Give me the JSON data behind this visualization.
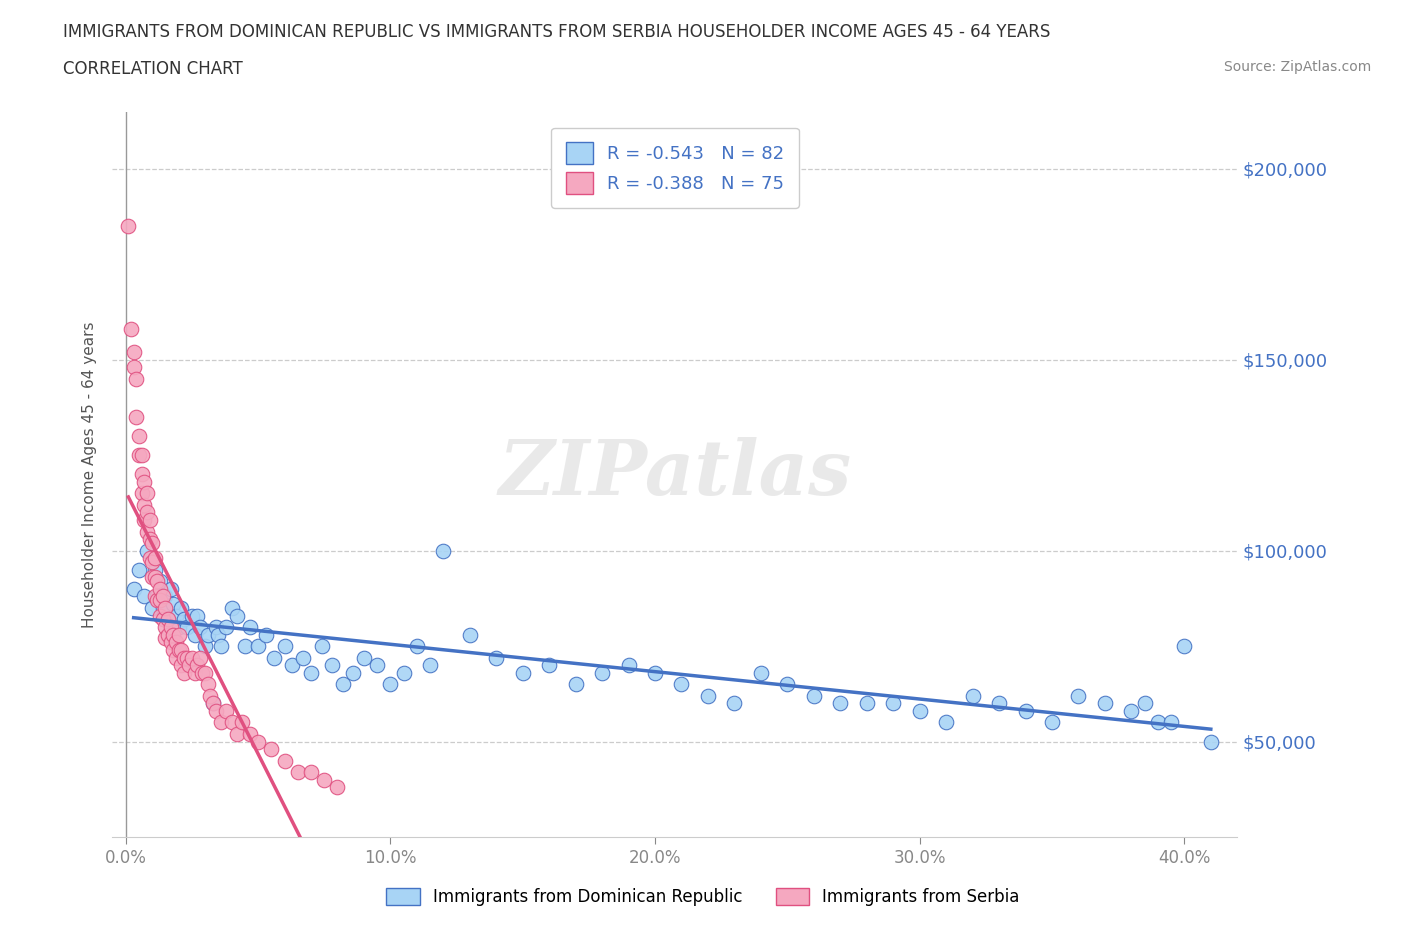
{
  "title_line1": "IMMIGRANTS FROM DOMINICAN REPUBLIC VS IMMIGRANTS FROM SERBIA HOUSEHOLDER INCOME AGES 45 - 64 YEARS",
  "title_line2": "CORRELATION CHART",
  "source_text": "Source: ZipAtlas.com",
  "ylabel": "Householder Income Ages 45 - 64 years",
  "xlabel_ticks": [
    "0.0%",
    "10.0%",
    "20.0%",
    "30.0%",
    "40.0%"
  ],
  "xlabel_tick_vals": [
    0.0,
    0.1,
    0.2,
    0.3,
    0.4
  ],
  "ytick_labels": [
    "$50,000",
    "$100,000",
    "$150,000",
    "$200,000"
  ],
  "ytick_vals": [
    50000,
    100000,
    150000,
    200000
  ],
  "xlim": [
    -0.005,
    0.42
  ],
  "ylim": [
    25000,
    215000
  ],
  "r_dominican": -0.543,
  "n_dominican": 82,
  "r_serbia": -0.388,
  "n_serbia": 75,
  "color_dominican": "#a8d4f5",
  "color_serbia": "#f5a8c0",
  "trendline_color_dominican": "#4472c4",
  "trendline_color_serbia": "#e05080",
  "watermark": "ZIPatlas",
  "legend_label_dominican": "Immigrants from Dominican Republic",
  "legend_label_serbia": "Immigrants from Serbia",
  "dominican_x": [
    0.003,
    0.005,
    0.007,
    0.008,
    0.01,
    0.011,
    0.012,
    0.013,
    0.014,
    0.015,
    0.016,
    0.017,
    0.018,
    0.019,
    0.02,
    0.021,
    0.022,
    0.023,
    0.025,
    0.026,
    0.027,
    0.028,
    0.03,
    0.031,
    0.033,
    0.034,
    0.035,
    0.036,
    0.038,
    0.04,
    0.042,
    0.045,
    0.047,
    0.05,
    0.053,
    0.056,
    0.06,
    0.063,
    0.067,
    0.07,
    0.074,
    0.078,
    0.082,
    0.086,
    0.09,
    0.095,
    0.1,
    0.105,
    0.11,
    0.115,
    0.12,
    0.13,
    0.14,
    0.15,
    0.16,
    0.17,
    0.18,
    0.19,
    0.2,
    0.21,
    0.22,
    0.23,
    0.24,
    0.25,
    0.26,
    0.27,
    0.28,
    0.29,
    0.3,
    0.31,
    0.32,
    0.33,
    0.34,
    0.35,
    0.36,
    0.37,
    0.38,
    0.39,
    0.4,
    0.41,
    0.385,
    0.395
  ],
  "dominican_y": [
    90000,
    95000,
    88000,
    100000,
    85000,
    95000,
    88000,
    92000,
    85000,
    88000,
    82000,
    90000,
    86000,
    83000,
    80000,
    85000,
    82000,
    80000,
    83000,
    78000,
    83000,
    80000,
    75000,
    78000,
    60000,
    80000,
    78000,
    75000,
    80000,
    85000,
    83000,
    75000,
    80000,
    75000,
    78000,
    72000,
    75000,
    70000,
    72000,
    68000,
    75000,
    70000,
    65000,
    68000,
    72000,
    70000,
    65000,
    68000,
    75000,
    70000,
    100000,
    78000,
    72000,
    68000,
    70000,
    65000,
    68000,
    70000,
    68000,
    65000,
    62000,
    60000,
    68000,
    65000,
    62000,
    60000,
    60000,
    60000,
    58000,
    55000,
    62000,
    60000,
    58000,
    55000,
    62000,
    60000,
    58000,
    55000,
    75000,
    50000,
    60000,
    55000
  ],
  "serbia_x": [
    0.001,
    0.002,
    0.003,
    0.003,
    0.004,
    0.004,
    0.005,
    0.005,
    0.006,
    0.006,
    0.006,
    0.007,
    0.007,
    0.007,
    0.008,
    0.008,
    0.008,
    0.009,
    0.009,
    0.009,
    0.01,
    0.01,
    0.01,
    0.011,
    0.011,
    0.011,
    0.012,
    0.012,
    0.013,
    0.013,
    0.013,
    0.014,
    0.014,
    0.015,
    0.015,
    0.015,
    0.016,
    0.016,
    0.017,
    0.017,
    0.018,
    0.018,
    0.019,
    0.019,
    0.02,
    0.02,
    0.021,
    0.021,
    0.022,
    0.022,
    0.023,
    0.024,
    0.025,
    0.026,
    0.027,
    0.028,
    0.029,
    0.03,
    0.031,
    0.032,
    0.033,
    0.034,
    0.036,
    0.038,
    0.04,
    0.042,
    0.044,
    0.047,
    0.05,
    0.055,
    0.06,
    0.065,
    0.07,
    0.075,
    0.08
  ],
  "serbia_y": [
    185000,
    158000,
    152000,
    148000,
    145000,
    135000,
    130000,
    125000,
    125000,
    120000,
    115000,
    118000,
    112000,
    108000,
    115000,
    110000,
    105000,
    108000,
    103000,
    98000,
    102000,
    97000,
    93000,
    98000,
    93000,
    88000,
    92000,
    87000,
    90000,
    87000,
    83000,
    88000,
    82000,
    85000,
    80000,
    77000,
    82000,
    78000,
    80000,
    76000,
    78000,
    74000,
    76000,
    72000,
    78000,
    74000,
    74000,
    70000,
    72000,
    68000,
    72000,
    70000,
    72000,
    68000,
    70000,
    72000,
    68000,
    68000,
    65000,
    62000,
    60000,
    58000,
    55000,
    58000,
    55000,
    52000,
    55000,
    52000,
    50000,
    48000,
    45000,
    42000,
    42000,
    40000,
    38000
  ]
}
